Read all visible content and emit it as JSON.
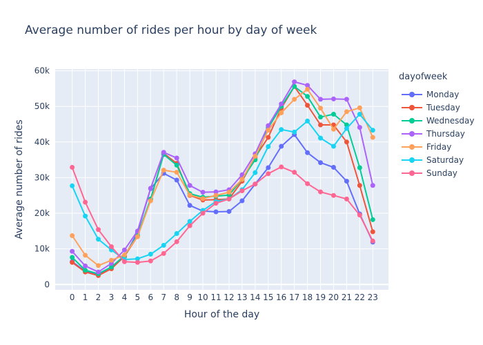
{
  "chart_data": {
    "type": "line",
    "title": "Average number of rides per hour by day of week",
    "xlabel": "Hour of the day",
    "ylabel": "Average number of rides",
    "legend_title": "dayofweek",
    "legend_position": "right",
    "grid": true,
    "x": [
      0,
      1,
      2,
      3,
      4,
      5,
      6,
      7,
      8,
      9,
      10,
      11,
      12,
      13,
      14,
      15,
      16,
      17,
      18,
      19,
      20,
      21,
      22,
      23
    ],
    "xticks": [
      "0",
      "1",
      "2",
      "3",
      "4",
      "5",
      "6",
      "7",
      "8",
      "9",
      "10",
      "11",
      "12",
      "13",
      "14",
      "15",
      "16",
      "17",
      "18",
      "19",
      "20",
      "21",
      "22",
      "23"
    ],
    "ylim": [
      -1500,
      60500
    ],
    "yticks": [
      0,
      10000,
      20000,
      30000,
      40000,
      50000,
      60000
    ],
    "ytick_labels": [
      "0",
      "10k",
      "20k",
      "30k",
      "40k",
      "50k",
      "60k"
    ],
    "series": [
      {
        "name": "Monday",
        "color": "#636efa",
        "values": [
          6400,
          3700,
          2700,
          4600,
          7800,
          14600,
          26900,
          31200,
          29300,
          22200,
          20600,
          20400,
          20500,
          23500,
          28200,
          32800,
          38800,
          42100,
          37000,
          34200,
          32900,
          29000,
          19800,
          11900
        ]
      },
      {
        "name": "Tuesday",
        "color": "#EF553B",
        "values": [
          6200,
          3500,
          2500,
          4400,
          7900,
          13500,
          23800,
          36800,
          34000,
          25000,
          23700,
          23800,
          24000,
          29000,
          35700,
          41300,
          49500,
          55600,
          50300,
          44800,
          44800,
          40000,
          27800,
          14800
        ]
      },
      {
        "name": "Wednesday",
        "color": "#00cc96",
        "values": [
          7600,
          4000,
          3000,
          4900,
          8100,
          13800,
          24000,
          36500,
          33500,
          25500,
          24500,
          24800,
          25100,
          29500,
          35000,
          44000,
          50000,
          55600,
          52800,
          47000,
          47800,
          44800,
          32800,
          18200
        ]
      },
      {
        "name": "Thursday",
        "color": "#ab63fa",
        "values": [
          9300,
          5200,
          3500,
          5900,
          9700,
          15000,
          27000,
          37100,
          35500,
          27800,
          25900,
          26000,
          26600,
          30800,
          36700,
          44600,
          50700,
          56900,
          55900,
          52000,
          52100,
          52000,
          44100,
          27800
        ]
      },
      {
        "name": "Friday",
        "color": "#FFA15A",
        "values": [
          13700,
          8200,
          5300,
          6800,
          8300,
          13400,
          23500,
          32100,
          31500,
          25100,
          24100,
          25000,
          25900,
          29500,
          36000,
          43300,
          48200,
          52000,
          54800,
          49500,
          43600,
          48500,
          49600,
          41300
        ]
      },
      {
        "name": "Saturday",
        "color": "#19d3f3",
        "values": [
          27700,
          19200,
          12700,
          9700,
          7000,
          7200,
          8500,
          11000,
          14300,
          17700,
          20800,
          23300,
          24000,
          26600,
          31400,
          38700,
          43500,
          42800,
          45900,
          41100,
          38800,
          43800,
          47800,
          43300
        ]
      },
      {
        "name": "Sunday",
        "color": "#FF6692",
        "values": [
          32900,
          23100,
          15400,
          10600,
          6400,
          6200,
          6600,
          8700,
          12000,
          16500,
          20000,
          22800,
          24000,
          26300,
          28200,
          31100,
          33000,
          31500,
          28300,
          26000,
          25000,
          24000,
          19500,
          12200
        ]
      }
    ]
  }
}
